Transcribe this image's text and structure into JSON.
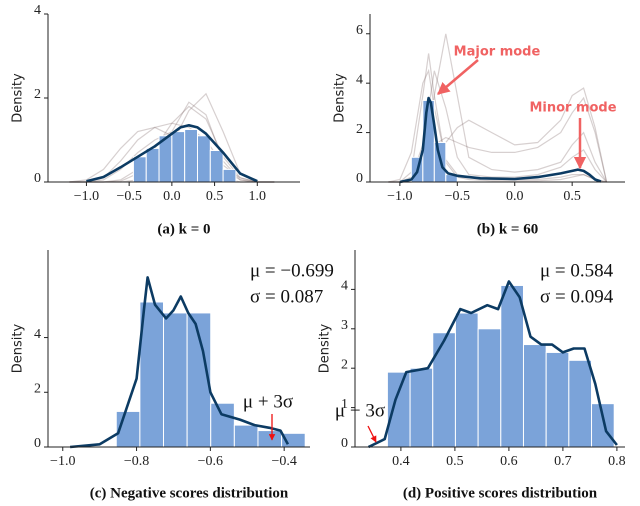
{
  "chart_data": [
    {
      "type": "histogram",
      "caption": "(a) k = 0",
      "ylabel": "Density",
      "xlim": [
        -1.45,
        1.5
      ],
      "xticks": [
        {
          "value": -1,
          "label": "−1.0"
        },
        {
          "value": -0.5,
          "label": "−0.5"
        },
        {
          "value": 0,
          "label": "0.0"
        },
        0.5,
        {
          "value": 1,
          "label": "1.0"
        }
      ],
      "ylim": [
        0,
        4
      ],
      "yticks": [
        0,
        2,
        4
      ],
      "bins": [
        -0.45,
        -0.3,
        -0.15,
        0,
        0.15,
        0.3,
        0.45,
        0.6,
        0.75
      ],
      "counts": [
        0.6,
        0.8,
        1.1,
        1.2,
        1.25,
        1.1,
        0.75,
        0.3
      ],
      "color": "#7ba3d9",
      "kde": {
        "color": "#0c3b63",
        "x": [
          -1.0,
          -0.8,
          -0.6,
          -0.4,
          -0.2,
          0,
          0.1,
          0.2,
          0.3,
          0.4,
          0.6,
          0.8,
          1.0
        ],
        "values": [
          0.02,
          0.12,
          0.35,
          0.6,
          0.85,
          1.15,
          1.3,
          1.35,
          1.3,
          1.15,
          0.7,
          0.2,
          0.02
        ]
      },
      "curves": {
        "color": "#7a6464",
        "x": [
          -1.2,
          -1.0,
          -0.8,
          -0.6,
          -0.4,
          -0.2,
          0,
          0.2,
          0.4,
          0.6,
          0.8,
          1.0,
          1.2
        ],
        "lines": [
          [
            0,
            0.05,
            0.3,
            0.8,
            1.2,
            1.3,
            1.1,
            0.7,
            0.3,
            0.1,
            0,
            0,
            0
          ],
          [
            0,
            0,
            0.05,
            0.3,
            0.7,
            1.0,
            1.2,
            1.1,
            0.7,
            0.3,
            0.05,
            0,
            0
          ],
          [
            0,
            0,
            0,
            0.05,
            0.3,
            0.8,
            1.4,
            1.8,
            1.5,
            0.6,
            0.1,
            0,
            0
          ],
          [
            0,
            0,
            0,
            0,
            0.05,
            0.3,
            0.9,
            1.7,
            2.1,
            1.2,
            0.2,
            0,
            0
          ],
          [
            0,
            0,
            0.1,
            0.5,
            1.0,
            1.3,
            1.4,
            1.3,
            1.0,
            0.4,
            0.1,
            0,
            0
          ],
          [
            0,
            0,
            0,
            0.02,
            0.2,
            0.6,
            1.2,
            1.9,
            1.6,
            0.5,
            0.05,
            0,
            0
          ]
        ]
      },
      "annotations": []
    },
    {
      "type": "histogram",
      "caption": "(b) k = 60",
      "ylabel": "Density",
      "xlim": [
        -1.26,
        0.96
      ],
      "xticks": [
        {
          "value": -1,
          "label": "−1.0"
        },
        {
          "value": -0.5,
          "label": "−0.5"
        },
        {
          "value": 0,
          "label": "0.0"
        },
        0.5
      ],
      "ylim": [
        0,
        6.8
      ],
      "yticks": [
        0,
        2,
        4,
        6
      ],
      "bins": [
        -0.9,
        -0.8,
        -0.7,
        -0.6,
        -0.5
      ],
      "counts": [
        1.0,
        3.3,
        1.6,
        0.3
      ],
      "color": "#7ba3d9",
      "kde": {
        "color": "#0c3b63",
        "x": [
          -1.0,
          -0.9,
          -0.85,
          -0.8,
          -0.77,
          -0.75,
          -0.73,
          -0.7,
          -0.67,
          -0.63,
          -0.58,
          -0.5,
          -0.3,
          0,
          0.2,
          0.4,
          0.5,
          0.55,
          0.6,
          0.65,
          0.7,
          0.75
        ],
        "values": [
          0,
          0.1,
          0.4,
          1.3,
          2.8,
          3.4,
          3.2,
          2.3,
          1.3,
          0.6,
          0.35,
          0.25,
          0.15,
          0.12,
          0.2,
          0.35,
          0.45,
          0.5,
          0.45,
          0.3,
          0.1,
          0.02
        ]
      },
      "curves": {
        "color": "#7a6464",
        "x": [
          -1.1,
          -1.0,
          -0.9,
          -0.8,
          -0.75,
          -0.7,
          -0.6,
          -0.5,
          -0.4,
          -0.2,
          0,
          0.2,
          0.4,
          0.5,
          0.6,
          0.7,
          0.8
        ],
        "lines": [
          [
            0,
            0,
            0.4,
            3.5,
            5.2,
            3.5,
            0.8,
            0.2,
            0.1,
            0.05,
            0.05,
            0.05,
            0.1,
            0.2,
            0.3,
            0.1,
            0
          ],
          [
            0,
            0.1,
            1.2,
            4.0,
            4.5,
            3.0,
            0.9,
            0.3,
            0.2,
            0.1,
            0.1,
            0.1,
            0.2,
            0.3,
            0.3,
            0.1,
            0
          ],
          [
            0,
            0,
            0.2,
            1.5,
            3.0,
            4.5,
            3.0,
            1.0,
            0.3,
            0.2,
            0.2,
            0.3,
            0.6,
            1.0,
            1.3,
            0.5,
            0
          ],
          [
            0,
            0,
            0,
            0.5,
            1.5,
            3.5,
            6.0,
            3.5,
            1.0,
            0.5,
            0.4,
            0.5,
            0.8,
            1.5,
            2.0,
            0.8,
            0
          ],
          [
            0,
            0,
            0.1,
            0.6,
            1.0,
            1.5,
            1.8,
            1.6,
            1.4,
            1.2,
            1.2,
            1.4,
            2.0,
            2.8,
            3.4,
            2.0,
            0
          ],
          [
            0,
            0,
            0,
            0.2,
            0.5,
            1.0,
            1.6,
            2.2,
            2.5,
            2.0,
            1.5,
            1.6,
            2.5,
            3.5,
            3.8,
            2.2,
            0
          ]
        ]
      },
      "annotations": [
        {
          "text": "Major mode",
          "color": "#f06262"
        },
        {
          "text": "Minor mode",
          "color": "#f06262"
        }
      ]
    },
    {
      "type": "histogram",
      "caption": "(c) Negative scores distribution",
      "ylabel": "Density",
      "xlim": [
        -1.04,
        -0.33
      ],
      "xticks": [
        {
          "value": -1,
          "label": "−1.0"
        },
        {
          "value": -0.8,
          "label": "−0.8"
        },
        {
          "value": -0.6,
          "label": "−0.6"
        },
        {
          "value": -0.4,
          "label": "−0.4"
        }
      ],
      "ylim": [
        0,
        7.2
      ],
      "yticks": [
        0,
        2,
        4
      ],
      "bins": [
        -0.855,
        -0.791,
        -0.727,
        -0.663,
        -0.599,
        -0.535,
        -0.471,
        -0.407,
        -0.343
      ],
      "counts": [
        1.3,
        5.3,
        4.9,
        4.9,
        1.6,
        0.8,
        0.6,
        0.5
      ],
      "color": "#7ba3d9",
      "kde": {
        "color": "#0c3b63",
        "x": [
          -0.98,
          -0.9,
          -0.85,
          -0.8,
          -0.78,
          -0.77,
          -0.75,
          -0.72,
          -0.7,
          -0.68,
          -0.66,
          -0.64,
          -0.62,
          -0.6,
          -0.57,
          -0.52,
          -0.48,
          -0.44,
          -0.41,
          -0.39
        ],
        "values": [
          0,
          0.1,
          0.5,
          2.5,
          5.0,
          6.2,
          5.2,
          4.7,
          5.0,
          5.5,
          4.9,
          4.5,
          3.5,
          2.0,
          1.2,
          1.0,
          0.8,
          0.7,
          0.6,
          0.1
        ]
      },
      "annotations": [
        {
          "text": "μ = −0.699",
          "color": "#111111"
        },
        {
          "text": "σ = 0.087",
          "color": "#111111"
        },
        {
          "text": "μ + 3σ",
          "color": "#ee1111"
        }
      ]
    },
    {
      "type": "histogram",
      "caption": "(d) Positive scores distribution",
      "ylabel": "Density",
      "xlim": [
        0.315,
        0.815
      ],
      "xticks": [
        0.4,
        0.5,
        0.6,
        0.7,
        0.8
      ],
      "ylim": [
        0,
        5.0
      ],
      "yticks": [
        0,
        1,
        2,
        3,
        4
      ],
      "bins": [
        0.375,
        0.417,
        0.459,
        0.501,
        0.543,
        0.585,
        0.627,
        0.669,
        0.711,
        0.753,
        0.795
      ],
      "counts": [
        1.9,
        2.0,
        2.9,
        3.4,
        3.0,
        4.1,
        2.6,
        2.4,
        2.2,
        1.1
      ],
      "color": "#7ba3d9",
      "kde": {
        "color": "#0c3b63",
        "x": [
          0.34,
          0.37,
          0.39,
          0.41,
          0.45,
          0.48,
          0.51,
          0.53,
          0.56,
          0.58,
          0.6,
          0.62,
          0.64,
          0.66,
          0.68,
          0.7,
          0.72,
          0.74,
          0.76,
          0.78,
          0.8
        ],
        "values": [
          0,
          0.2,
          1.2,
          1.9,
          2.0,
          2.7,
          3.5,
          3.4,
          3.6,
          3.5,
          4.2,
          3.8,
          2.8,
          2.6,
          2.6,
          2.4,
          2.5,
          2.5,
          1.6,
          0.4,
          0.05
        ]
      },
      "annotations": [
        {
          "text": "μ = 0.584",
          "color": "#111111"
        },
        {
          "text": "σ = 0.094",
          "color": "#111111"
        },
        {
          "text": "μ − 3σ",
          "color": "#ee1111"
        }
      ]
    }
  ]
}
